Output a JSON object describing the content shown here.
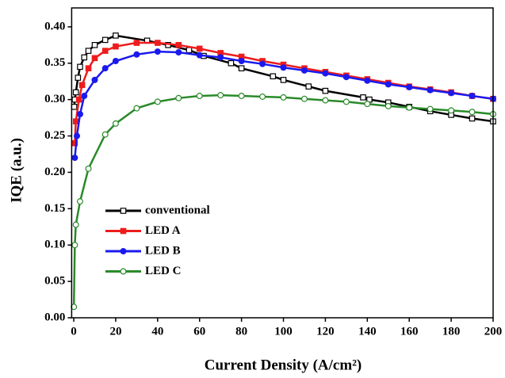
{
  "chart_data": {
    "type": "line",
    "xlabel": "Current Density (A/cm²)",
    "ylabel": "IQE (a.u.)",
    "xlim": [
      -1,
      200
    ],
    "ylim": [
      0,
      0.426
    ],
    "xticks": [
      0,
      20,
      40,
      60,
      80,
      100,
      120,
      140,
      160,
      180,
      200
    ],
    "yticks": [
      {
        "value": 0,
        "label": "0.00"
      },
      {
        "value": 0.05,
        "label": "0.05"
      },
      {
        "value": 0.1,
        "label": "0.10"
      },
      {
        "value": 0.15,
        "label": "0.15"
      },
      {
        "value": 0.2,
        "label": "0.20"
      },
      {
        "value": 0.25,
        "label": "0.25"
      },
      {
        "value": 0.3,
        "label": "0.30"
      },
      {
        "value": 0.35,
        "label": "0.35"
      },
      {
        "value": 0.4,
        "label": "0.40"
      }
    ],
    "legend": "center left",
    "series": [
      {
        "name": "conventional",
        "color": "#000000",
        "marker": "square",
        "filled": false,
        "x": [
          0.2,
          0.5,
          1,
          2,
          3,
          5,
          7,
          10,
          15,
          20,
          35,
          45,
          55,
          62,
          75,
          80,
          95,
          100,
          112,
          120,
          138,
          141,
          150,
          160,
          170,
          180,
          190,
          200
        ],
        "values": [
          0.29,
          0.3,
          0.31,
          0.33,
          0.345,
          0.358,
          0.367,
          0.375,
          0.382,
          0.388,
          0.381,
          0.375,
          0.368,
          0.36,
          0.35,
          0.343,
          0.332,
          0.327,
          0.318,
          0.312,
          0.303,
          0.3,
          0.296,
          0.29,
          0.284,
          0.279,
          0.274,
          0.27
        ]
      },
      {
        "name": "LED A",
        "color": "#ee1c1c",
        "marker": "square",
        "filled": true,
        "x": [
          0.5,
          1,
          2.5,
          4,
          7,
          10,
          15,
          20,
          30,
          40,
          50,
          60,
          70,
          80,
          90,
          100,
          110,
          120,
          130,
          140,
          150,
          160,
          170,
          180,
          190,
          200
        ],
        "values": [
          0.24,
          0.27,
          0.3,
          0.32,
          0.343,
          0.357,
          0.367,
          0.373,
          0.378,
          0.378,
          0.375,
          0.37,
          0.364,
          0.359,
          0.353,
          0.348,
          0.343,
          0.338,
          0.333,
          0.328,
          0.323,
          0.318,
          0.314,
          0.31,
          0.305,
          0.301
        ]
      },
      {
        "name": "LED B",
        "color": "#1a1aee",
        "marker": "circle",
        "filled": true,
        "x": [
          0.5,
          1.5,
          3,
          5,
          10,
          15,
          20,
          30,
          40,
          50,
          60,
          70,
          80,
          90,
          100,
          110,
          120,
          130,
          140,
          150,
          160,
          170,
          180,
          190,
          200
        ],
        "values": [
          0.22,
          0.25,
          0.28,
          0.305,
          0.327,
          0.343,
          0.353,
          0.362,
          0.366,
          0.365,
          0.361,
          0.358,
          0.353,
          0.349,
          0.344,
          0.34,
          0.336,
          0.331,
          0.326,
          0.321,
          0.317,
          0.313,
          0.309,
          0.305,
          0.301
        ]
      },
      {
        "name": "LED C",
        "color": "#2a8a2a",
        "marker": "circle",
        "filled": false,
        "x": [
          0.05,
          0.5,
          1,
          3,
          7,
          15,
          20,
          30,
          40,
          50,
          60,
          70,
          80,
          90,
          100,
          110,
          120,
          130,
          140,
          150,
          160,
          170,
          180,
          190,
          200
        ],
        "values": [
          0.015,
          0.1,
          0.128,
          0.16,
          0.205,
          0.252,
          0.267,
          0.288,
          0.297,
          0.302,
          0.305,
          0.306,
          0.305,
          0.304,
          0.303,
          0.301,
          0.299,
          0.297,
          0.294,
          0.291,
          0.289,
          0.287,
          0.285,
          0.283,
          0.28
        ]
      }
    ]
  }
}
